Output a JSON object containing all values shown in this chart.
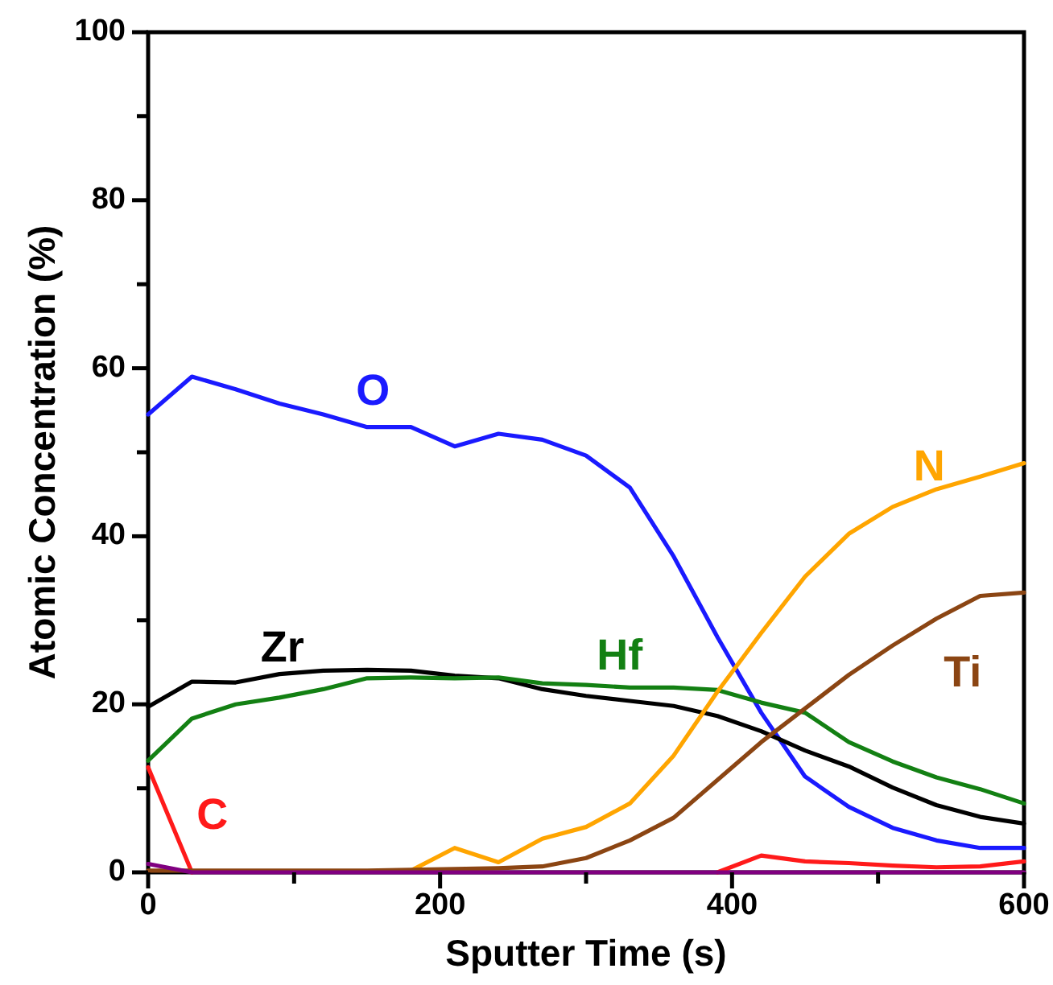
{
  "chart_data": {
    "type": "line",
    "xlabel": "Sputter Time (s)",
    "ylabel": "Atomic Concentration (%)",
    "x": [
      0,
      30,
      60,
      90,
      120,
      150,
      180,
      210,
      240,
      270,
      300,
      330,
      360,
      390,
      420,
      450,
      480,
      510,
      540,
      570,
      600
    ],
    "xlim": [
      0,
      600
    ],
    "xticks": [
      0,
      {
        "value": 100,
        "label": null
      },
      200,
      {
        "value": 300,
        "label": null
      },
      400,
      {
        "value": 500,
        "label": null
      },
      600
    ],
    "ylim": [
      0,
      100
    ],
    "yticks": [
      0,
      {
        "value": 10,
        "label": null
      },
      20,
      {
        "value": 30,
        "label": null
      },
      40,
      {
        "value": 50,
        "label": null
      },
      60,
      {
        "value": 70,
        "label": null
      },
      80,
      {
        "value": 90,
        "label": null
      },
      100
    ],
    "grid": false,
    "legend": false,
    "marker": "none",
    "line_style": "solid",
    "series": [
      {
        "name": "O",
        "color": "#1a1aff",
        "values": [
          54.5,
          59,
          57.5,
          55.8,
          54.5,
          53,
          53,
          50.7,
          52.2,
          51.5,
          49.6,
          45.8,
          37.6,
          28,
          19,
          11.4,
          7.8,
          5.3,
          3.8,
          2.9,
          2.9
        ]
      },
      {
        "name": "Zr",
        "color": "#000000",
        "values": [
          19.7,
          22.7,
          22.6,
          23.6,
          24,
          24.1,
          24,
          23.4,
          23.1,
          21.8,
          21,
          20.4,
          19.8,
          18.6,
          16.8,
          14.5,
          12.6,
          10.1,
          8,
          6.6,
          5.8
        ]
      },
      {
        "name": "Hf",
        "color": "#138013",
        "values": [
          13.3,
          18.3,
          20,
          20.8,
          21.8,
          23.1,
          23.2,
          23.1,
          23.2,
          22.5,
          22.3,
          22,
          22,
          21.7,
          20.2,
          19,
          15.5,
          13.2,
          11.3,
          9.9,
          8.2
        ]
      },
      {
        "name": "C",
        "color": "#ff1a1a",
        "values": [
          12.5,
          0,
          null,
          null,
          null,
          null,
          null,
          null,
          null,
          null,
          null,
          null,
          null,
          0,
          2,
          1.3,
          1.1,
          0.8,
          0.6,
          0.7,
          1.3
        ]
      },
      {
        "name": "N",
        "color": "#ffa500",
        "values": [
          null,
          null,
          null,
          null,
          null,
          null,
          0.2,
          2.9,
          1.2,
          4,
          5.4,
          8.2,
          13.9,
          21.5,
          28.5,
          35.2,
          40.3,
          43.5,
          45.6,
          47.1,
          48.7
        ]
      },
      {
        "name": "Ti",
        "color": "#8b4513",
        "values": [
          0.2,
          0.2,
          0.2,
          0.2,
          0.2,
          0.2,
          0.3,
          0.4,
          0.5,
          0.7,
          1.7,
          3.8,
          6.5,
          11,
          15.5,
          19.5,
          23.5,
          27,
          30.2,
          32.9,
          33.3
        ]
      },
      {
        "color": "#800080",
        "values": [
          1,
          0,
          0,
          0,
          0,
          0,
          0,
          0,
          0,
          0,
          0,
          0,
          0,
          0,
          0,
          0,
          0,
          0,
          0,
          0,
          0
        ]
      }
    ]
  }
}
